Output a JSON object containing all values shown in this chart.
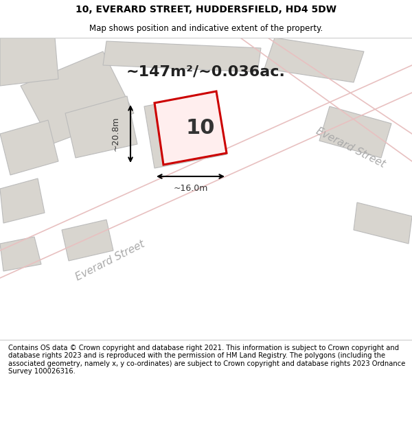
{
  "title_line1": "10, EVERARD STREET, HUDDERSFIELD, HD4 5DW",
  "title_line2": "Map shows position and indicative extent of the property.",
  "area_text": "~147m²/~0.036ac.",
  "label_number": "10",
  "dim_width": "~16.0m",
  "dim_height": "~20.8m",
  "street_label_bottom": "Everard Street",
  "street_label_right": "Everard Street",
  "footer_text": "Contains OS data © Crown copyright and database right 2021. This information is subject to Crown copyright and database rights 2023 and is reproduced with the permission of HM Land Registry. The polygons (including the associated geometry, namely x, y co-ordinates) are subject to Crown copyright and database rights 2023 Ordnance Survey 100026316.",
  "bg_color": "#f0eeea",
  "map_bg": "#f0eeea",
  "building_fill": "#d8d5cf",
  "building_edge": "#cccccc",
  "red_plot_color": "#cc0000",
  "street_line_color": "#e8c0c0",
  "white_bg": "#ffffff",
  "footer_bg": "#ffffff"
}
